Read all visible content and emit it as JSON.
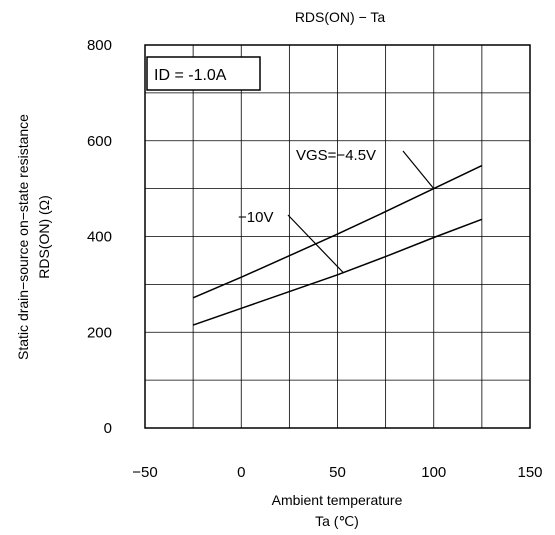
{
  "chart_data": {
    "type": "line",
    "title": "RDS(ON) − Ta",
    "xlabel_line1": "Ambient temperature",
    "xlabel_line2": "Ta (℃)",
    "ylabel_line1": "Static drain−source on−state resistance",
    "ylabel_line2": "RDS(ON) (Ω)",
    "xlim": [
      -50,
      150
    ],
    "ylim": [
      0,
      800
    ],
    "xticks": [
      -50,
      0,
      50,
      100,
      150
    ],
    "yticks": [
      0,
      200,
      400,
      600,
      800
    ],
    "grid": true,
    "condition_box": "ID = -1.0A",
    "series": [
      {
        "name": "VGS=−4.5V",
        "x": [
          -25,
          0,
          25,
          50,
          75,
          100,
          125
        ],
        "y": [
          272,
          315,
          360,
          405,
          452,
          500,
          548
        ]
      },
      {
        "name": "−10V",
        "x": [
          -25,
          0,
          25,
          50,
          75,
          100,
          125
        ],
        "y": [
          215,
          250,
          285,
          320,
          358,
          398,
          436
        ]
      }
    ],
    "annotations": [
      {
        "text": "VGS=−4.5V",
        "series": 0,
        "x": 100
      },
      {
        "text": "−10V",
        "series": 1,
        "x": 53
      }
    ]
  }
}
